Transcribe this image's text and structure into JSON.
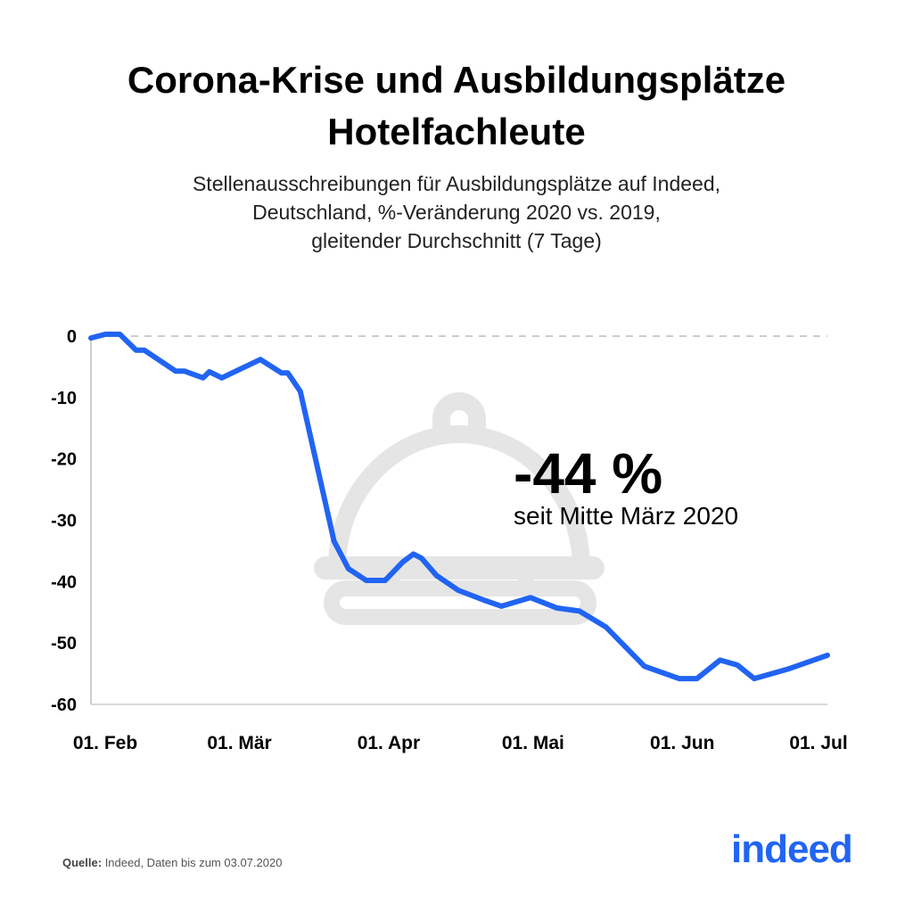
{
  "header": {
    "title_line1": "Corona-Krise und Ausbildungsplätze",
    "title_line2": "Hotelfachleute",
    "subtitle_line1": "Stellenausschreibungen für Ausbildungsplätze auf Indeed,",
    "subtitle_line2": "Deutschland, %-Veränderung 2020 vs. 2019,",
    "subtitle_line3": "gleitender Durchschnitt (7 Tage)"
  },
  "annotation": {
    "value": "-44 %",
    "text": "seit Mitte März 2020"
  },
  "footer": {
    "source_label": "Quelle:",
    "source_text": " Indeed, Daten bis zum 03.07.2020",
    "logo": "indeed"
  },
  "colors": {
    "line": "#2164f3",
    "icon": "#e5e5e5",
    "zero_line": "#bbbbbb"
  },
  "chart_data": {
    "type": "line",
    "title": "Corona-Krise und Ausbildungsplätze Hotelfachleute",
    "xlabel": "",
    "ylabel": "",
    "x_unit": "days since 01. Feb 2020",
    "xlim": [
      0,
      153
    ],
    "ylim": [
      -60,
      0
    ],
    "yticks": [
      0,
      -10,
      -20,
      -30,
      -40,
      -50,
      -60
    ],
    "ytick_labels": [
      "0",
      "-10",
      "-20",
      "-30",
      "-40",
      "-50",
      "-60"
    ],
    "xticks": [
      0,
      29,
      60,
      90,
      121,
      151
    ],
    "xtick_labels": [
      "01. Feb",
      "01. Mär",
      "01. Apr",
      "01. Mai",
      "01. Jun",
      "01. Jul"
    ],
    "grid": false,
    "series": [
      {
        "name": "Hotelfachleute",
        "x": [
          0,
          3,
          6,
          9.4,
          11.1,
          17.6,
          19.4,
          23.3,
          24.6,
          27.2,
          35.2,
          39.6,
          40.9,
          43.5,
          50.5,
          53.5,
          57.2,
          61.1,
          64.8,
          67,
          68.7,
          71.8,
          76.3,
          81.6,
          85.3,
          91.3,
          96.8,
          101.5,
          107,
          115,
          122.2,
          125.9,
          130.7,
          134.3,
          137.8,
          145,
          153
        ],
        "y": [
          -0.3,
          0.3,
          0.3,
          -2.3,
          -2.3,
          -5.7,
          -5.7,
          -6.8,
          -5.8,
          -6.8,
          -3.8,
          -6.0,
          -6.0,
          -9.0,
          -33.4,
          -37.9,
          -39.8,
          -39.8,
          -36.8,
          -35.5,
          -36.2,
          -39,
          -41.4,
          -43,
          -44,
          -42.6,
          -44.3,
          -44.8,
          -47.4,
          -53.8,
          -55.8,
          -55.8,
          -52.8,
          -53.6,
          -55.8,
          -54.2,
          -52
        ]
      }
    ]
  }
}
